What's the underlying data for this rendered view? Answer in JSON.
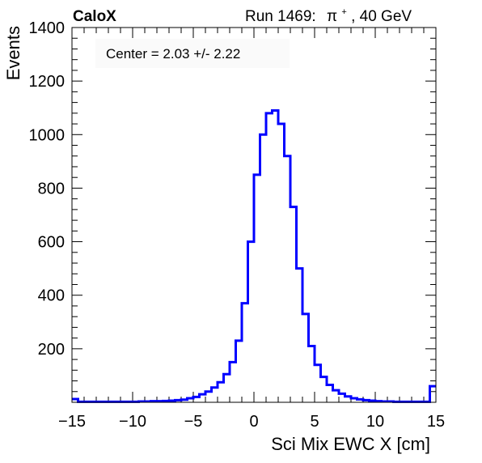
{
  "header": {
    "brand": "CaloX",
    "run_label": "Run 1469:",
    "particle": "π",
    "particle_charge": "+",
    "energy": ", 40 GeV"
  },
  "annotation": {
    "text": "Center = 2.03 +/- 2.22"
  },
  "chart_data": {
    "type": "histogram",
    "title": "",
    "xlabel": "Sci Mix EWC X [cm]",
    "ylabel": "Events",
    "xlim": [
      -15,
      15
    ],
    "ylim": [
      0,
      1400
    ],
    "x_ticks": [
      -15,
      -10,
      -5,
      0,
      5,
      10,
      15
    ],
    "x_tick_labels": [
      "−15",
      "−10",
      "−5",
      "0",
      "5",
      "10",
      "15"
    ],
    "y_ticks": [
      200,
      400,
      600,
      800,
      1000,
      1200,
      1400
    ],
    "y_tick_labels": [
      "200",
      "400",
      "600",
      "800",
      "1000",
      "1200",
      "1400"
    ],
    "grid": false,
    "legend": "none",
    "series": [
      {
        "color": "#0000ff",
        "bin_width": 0.5,
        "bin_edges_start": -15,
        "x": [
          -14.75,
          -14.25,
          -13.75,
          -13.25,
          -12.75,
          -12.25,
          -11.75,
          -11.25,
          -10.75,
          -10.25,
          -9.75,
          -9.25,
          -8.75,
          -8.25,
          -7.75,
          -7.25,
          -6.75,
          -6.25,
          -5.75,
          -5.25,
          -4.75,
          -4.25,
          -3.75,
          -3.25,
          -2.75,
          -2.25,
          -1.75,
          -1.25,
          -0.75,
          -0.25,
          0.25,
          0.75,
          1.25,
          1.75,
          2.25,
          2.75,
          3.25,
          3.75,
          4.25,
          4.75,
          5.25,
          5.75,
          6.25,
          6.75,
          7.25,
          7.75,
          8.25,
          8.75,
          9.25,
          9.75,
          10.25,
          10.75,
          11.25,
          11.75,
          12.25,
          12.75,
          13.25,
          13.75,
          14.25,
          14.75
        ],
        "values": [
          12,
          2,
          2,
          2,
          2,
          2,
          2,
          2,
          2,
          2,
          2,
          3,
          3,
          4,
          4,
          5,
          6,
          8,
          10,
          15,
          20,
          30,
          40,
          55,
          75,
          105,
          150,
          230,
          370,
          600,
          850,
          1000,
          1080,
          1090,
          1040,
          920,
          730,
          500,
          330,
          210,
          140,
          95,
          65,
          45,
          32,
          22,
          15,
          11,
          8,
          6,
          4,
          3,
          3,
          2,
          2,
          2,
          2,
          2,
          2,
          60
        ]
      }
    ]
  }
}
